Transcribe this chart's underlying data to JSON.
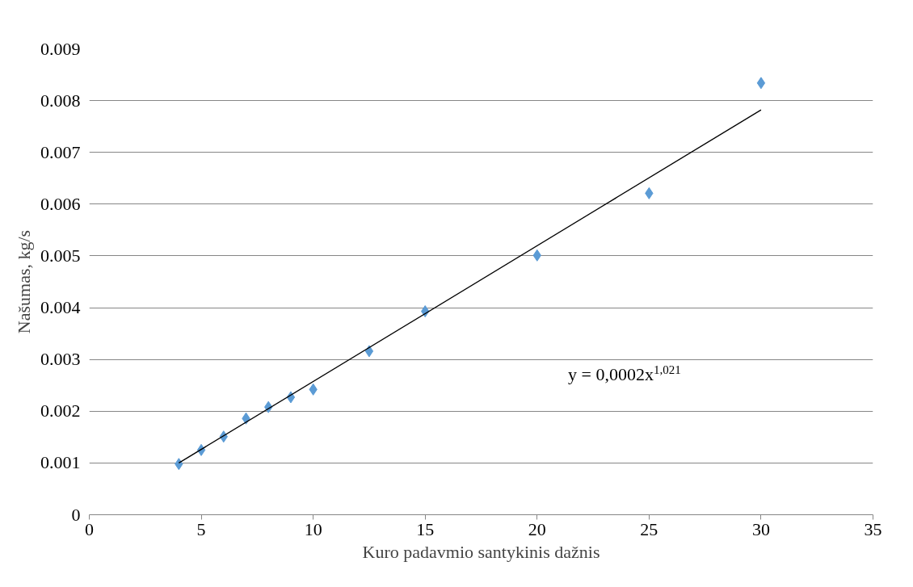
{
  "chart_data": {
    "type": "scatter",
    "xlabel": "Kuro padavmio santykinis dažnis",
    "ylabel": "Našumas, kg/s",
    "xlim": [
      0,
      35
    ],
    "xticks": [
      0,
      5,
      10,
      15,
      20,
      25,
      30,
      35
    ],
    "ylim": [
      0,
      0.009
    ],
    "yticks": [
      0,
      0.001,
      0.002,
      0.003,
      0.004,
      0.005,
      0.006,
      0.007,
      0.008,
      0.009
    ],
    "grid": "y",
    "series": [
      {
        "marker": "diamond",
        "color": "#5b9bd5",
        "x": [
          4,
          5,
          6,
          7,
          8,
          9,
          10,
          12.5,
          15,
          20,
          25,
          30
        ],
        "values": [
          0.00098,
          0.00125,
          0.00151,
          0.00186,
          0.00208,
          0.00227,
          0.00242,
          0.00316,
          0.00393,
          0.00501,
          0.00621,
          0.00834
        ]
      },
      {
        "type": "line",
        "color": "#000000",
        "x": [
          4,
          30
        ],
        "values": [
          0.001,
          0.00782
        ]
      }
    ],
    "annotations": [
      "y = 0,0002x$^{1,021}$"
    ]
  }
}
